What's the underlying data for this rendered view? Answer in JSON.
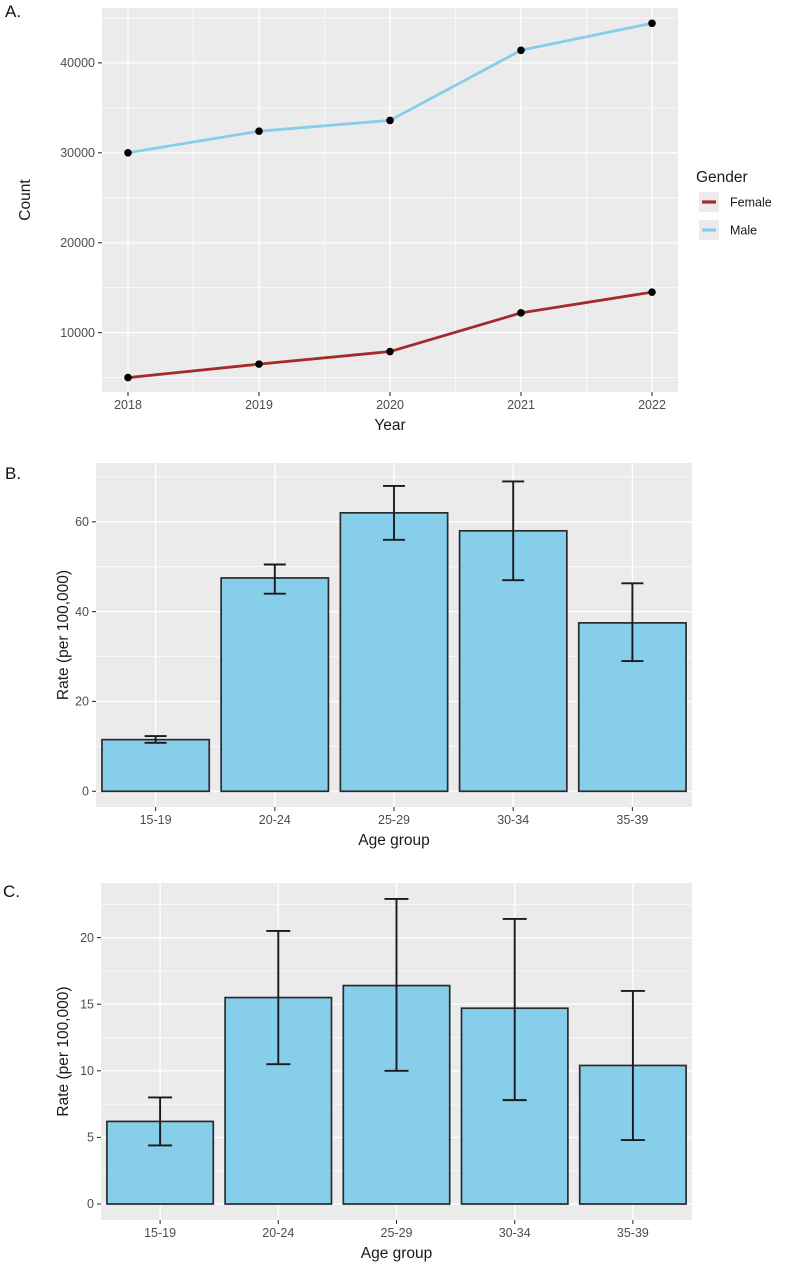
{
  "figure": {
    "panels": [
      {
        "label": "A."
      },
      {
        "label": "B."
      },
      {
        "label": "C."
      }
    ]
  },
  "colors": {
    "background": "#FFFFFF",
    "panel_bg": "#EBEBEB",
    "grid": "#FFFFFF",
    "tick": "#333333",
    "tick_label": "#4D4D4D",
    "axis_title": "#1A1A1A",
    "bar_fill": "#87CEEB",
    "bar_stroke": "#2B2B2B",
    "errorbar": "#1A1A1A",
    "point": "#000000",
    "legend_key": "#EBEBEB",
    "female": "#A52A2A",
    "male": "#87CEEB"
  },
  "chart_data": [
    {
      "type": "line",
      "panel": "A",
      "xlabel": "Year",
      "ylabel": "Count",
      "x": [
        2018,
        2019,
        2020,
        2021,
        2022
      ],
      "series": [
        {
          "name": "Female",
          "color": "#A52A2A",
          "values": [
            5000,
            6500,
            7900,
            12200,
            14500
          ]
        },
        {
          "name": "Male",
          "color": "#87CEEB",
          "values": [
            30000,
            32400,
            33600,
            41400,
            44400
          ]
        }
      ],
      "yticks": [
        10000,
        20000,
        30000,
        40000
      ],
      "yminor": [
        5000,
        15000,
        25000,
        35000,
        45000
      ],
      "ylim": [
        3400,
        46100
      ],
      "grid": true,
      "markers": true,
      "legend": {
        "title": "Gender",
        "position": "right",
        "entries": [
          "Female",
          "Male"
        ]
      }
    },
    {
      "type": "bar",
      "panel": "B",
      "xlabel": "Age group",
      "ylabel": "Rate (per 100,000)",
      "categories": [
        "15-19",
        "20-24",
        "25-29",
        "30-34",
        "35-39"
      ],
      "values": [
        11.5,
        47.5,
        62,
        58,
        37.5
      ],
      "error_low": [
        10.8,
        44,
        56,
        47,
        29
      ],
      "error_high": [
        12.3,
        50.5,
        68,
        69,
        46.3
      ],
      "yticks": [
        0,
        20,
        40,
        60
      ],
      "yminor": [
        10,
        30,
        50,
        70
      ],
      "ylim": [
        -3.5,
        73.1
      ],
      "grid": true
    },
    {
      "type": "bar",
      "panel": "C",
      "xlabel": "Age group",
      "ylabel": "Rate (per 100,000)",
      "categories": [
        "15-19",
        "20-24",
        "25-29",
        "30-34",
        "35-39"
      ],
      "values": [
        6.2,
        15.5,
        16.4,
        14.7,
        10.4
      ],
      "error_low": [
        4.4,
        10.5,
        10,
        7.8,
        4.8
      ],
      "error_high": [
        8,
        20.5,
        22.9,
        21.4,
        16
      ],
      "yticks": [
        0,
        5,
        10,
        15,
        20
      ],
      "yminor": [
        2.5,
        7.5,
        12.5,
        17.5,
        22.5
      ],
      "ylim": [
        -1.2,
        24.1
      ],
      "grid": true
    }
  ]
}
